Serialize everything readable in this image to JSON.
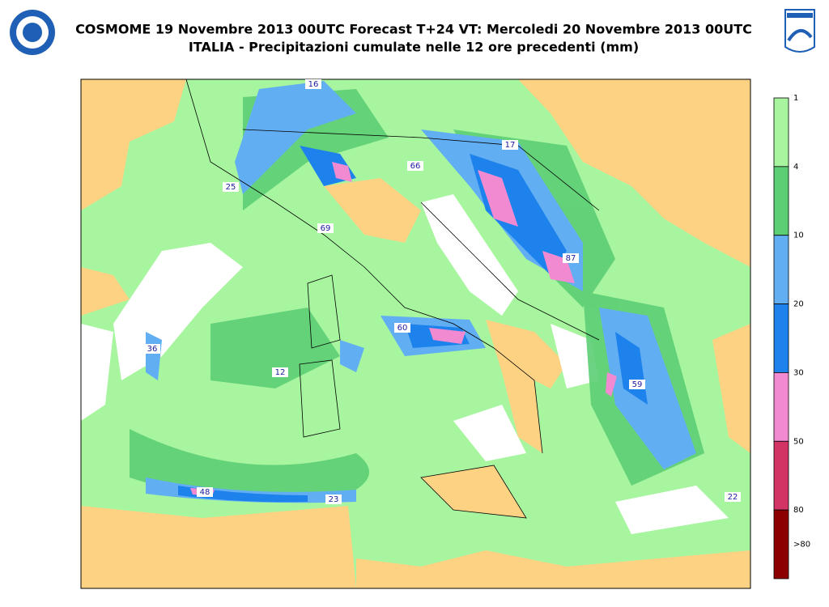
{
  "header": {
    "title": "COSMOME 19 Novembre 2013 00UTC Forecast T+24 VT: Mercoledi 20 Novembre 2013 00UTC",
    "subtitle": "ITALIA - Precipitazioni cumulate nelle 12 ore precedenti (mm)"
  },
  "map": {
    "maxima": [
      16,
      25,
      66,
      17,
      69,
      87,
      60,
      36,
      12,
      59,
      48,
      23,
      22
    ]
  },
  "colorbar": {
    "ticks": [
      1,
      4,
      10,
      20,
      30,
      50,
      80
    ],
    "overflow_label": ">80",
    "colors": [
      "#a8f5a0",
      "#5cce74",
      "#62aef2",
      "#1e82ec",
      "#f28ad2",
      "#d23466",
      "#8c0000"
    ]
  }
}
